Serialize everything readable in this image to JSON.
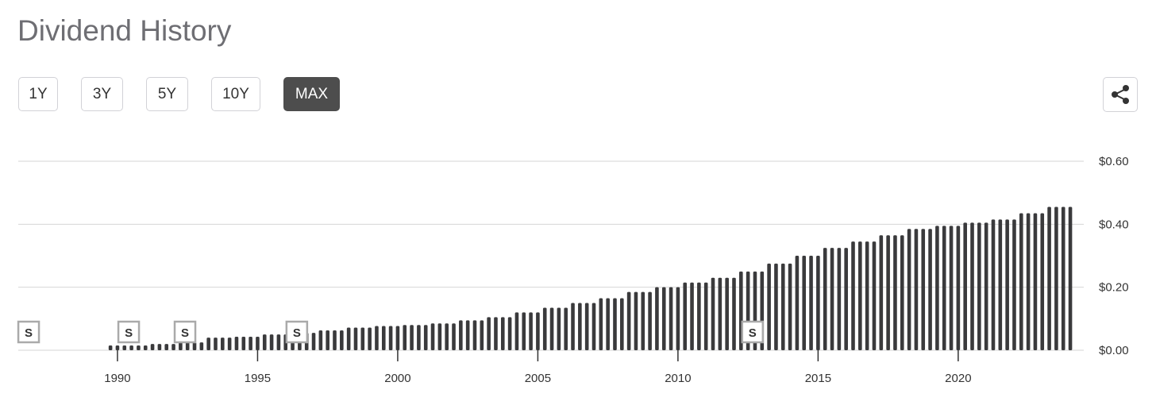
{
  "controls": {
    "ranges": [
      "1Y",
      "3Y",
      "5Y",
      "10Y",
      "MAX"
    ],
    "active": "MAX"
  },
  "chart_data": {
    "type": "bar",
    "title": "Dividend History",
    "color": "#3a3a3c",
    "grid": true,
    "xlim": [
      1986.46,
      2024.48
    ],
    "xticks": [
      1990,
      1995,
      2000,
      2005,
      2010,
      2015,
      2020
    ],
    "ylim": [
      0,
      0.6
    ],
    "yticks": [
      {
        "value": 0,
        "label": "$0.00"
      },
      {
        "value": 0.2,
        "label": "$0.20"
      },
      {
        "value": 0.4,
        "label": "$0.40"
      },
      {
        "value": 0.6,
        "label": "$0.60"
      }
    ],
    "annotations": [
      {
        "x": 1986.83,
        "label": "S"
      },
      {
        "x": 1990.4,
        "label": "S"
      },
      {
        "x": 1992.41,
        "label": "S"
      },
      {
        "x": 1996.4,
        "label": "S"
      },
      {
        "x": 2012.66,
        "label": "S"
      }
    ],
    "x": [
      1989.75,
      1990.0,
      1990.25,
      1990.5,
      1990.75,
      1991.0,
      1991.25,
      1991.5,
      1991.75,
      1992.0,
      1992.25,
      1992.5,
      1992.75,
      1993.0,
      1993.25,
      1993.5,
      1993.75,
      1994.0,
      1994.25,
      1994.5,
      1994.75,
      1995.0,
      1995.25,
      1995.5,
      1995.75,
      1996.0,
      1996.25,
      1996.5,
      1996.75,
      1997.0,
      1997.25,
      1997.5,
      1997.75,
      1998.0,
      1998.25,
      1998.5,
      1998.75,
      1999.0,
      1999.25,
      1999.5,
      1999.75,
      2000.0,
      2000.25,
      2000.5,
      2000.75,
      2001.0,
      2001.25,
      2001.5,
      2001.75,
      2002.0,
      2002.25,
      2002.5,
      2002.75,
      2003.0,
      2003.25,
      2003.5,
      2003.75,
      2004.0,
      2004.25,
      2004.5,
      2004.75,
      2005.0,
      2005.25,
      2005.5,
      2005.75,
      2006.0,
      2006.25,
      2006.5,
      2006.75,
      2007.0,
      2007.25,
      2007.5,
      2007.75,
      2008.0,
      2008.25,
      2008.5,
      2008.75,
      2009.0,
      2009.25,
      2009.5,
      2009.75,
      2010.0,
      2010.25,
      2010.5,
      2010.75,
      2011.0,
      2011.25,
      2011.5,
      2011.75,
      2012.0,
      2012.25,
      2012.5,
      2012.75,
      2013.0,
      2013.25,
      2013.5,
      2013.75,
      2014.0,
      2014.25,
      2014.5,
      2014.75,
      2015.0,
      2015.25,
      2015.5,
      2015.75,
      2016.0,
      2016.25,
      2016.5,
      2016.75,
      2017.0,
      2017.25,
      2017.5,
      2017.75,
      2018.0,
      2018.25,
      2018.5,
      2018.75,
      2019.0,
      2019.25,
      2019.5,
      2019.75,
      2020.0,
      2020.25,
      2020.5,
      2020.75,
      2021.0,
      2021.25,
      2021.5,
      2021.75,
      2022.0,
      2022.25,
      2022.5,
      2022.75,
      2023.0,
      2023.25,
      2023.5,
      2023.75,
      2024.0
    ],
    "values": [
      0.015,
      0.015,
      0.015,
      0.015,
      0.015,
      0.015,
      0.02,
      0.02,
      0.02,
      0.02,
      0.025,
      0.025,
      0.025,
      0.025,
      0.04,
      0.04,
      0.04,
      0.04,
      0.043,
      0.043,
      0.043,
      0.043,
      0.05,
      0.05,
      0.05,
      0.05,
      0.055,
      0.055,
      0.055,
      0.055,
      0.063,
      0.063,
      0.063,
      0.063,
      0.072,
      0.072,
      0.072,
      0.072,
      0.077,
      0.077,
      0.077,
      0.077,
      0.08,
      0.08,
      0.08,
      0.08,
      0.085,
      0.085,
      0.085,
      0.085,
      0.095,
      0.095,
      0.095,
      0.095,
      0.105,
      0.105,
      0.105,
      0.105,
      0.12,
      0.12,
      0.12,
      0.12,
      0.135,
      0.135,
      0.135,
      0.135,
      0.15,
      0.15,
      0.15,
      0.15,
      0.165,
      0.165,
      0.165,
      0.165,
      0.185,
      0.185,
      0.185,
      0.185,
      0.2,
      0.2,
      0.2,
      0.2,
      0.215,
      0.215,
      0.215,
      0.215,
      0.23,
      0.23,
      0.23,
      0.23,
      0.25,
      0.25,
      0.25,
      0.25,
      0.275,
      0.275,
      0.275,
      0.275,
      0.3,
      0.3,
      0.3,
      0.3,
      0.325,
      0.325,
      0.325,
      0.325,
      0.345,
      0.345,
      0.345,
      0.345,
      0.365,
      0.365,
      0.365,
      0.365,
      0.385,
      0.385,
      0.385,
      0.385,
      0.395,
      0.395,
      0.395,
      0.395,
      0.405,
      0.405,
      0.405,
      0.405,
      0.415,
      0.415,
      0.415,
      0.415,
      0.435,
      0.435,
      0.435,
      0.435,
      0.455,
      0.455,
      0.455,
      0.455
    ]
  }
}
